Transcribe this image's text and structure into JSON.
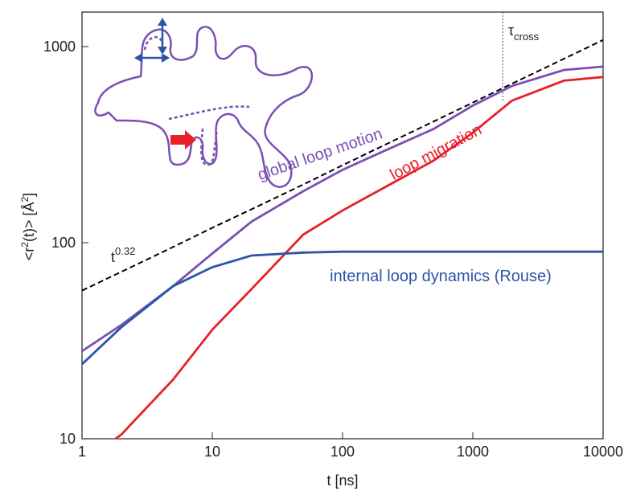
{
  "chart_data": {
    "type": "line",
    "log_x": true,
    "log_y": true,
    "x_label": "t [ns]",
    "y_label": [
      "<r",
      "2",
      "(t)> [Å",
      "2",
      "]"
    ],
    "x": [
      1,
      2,
      5,
      10,
      20,
      50,
      100,
      200,
      500,
      1000,
      2000,
      5000,
      10000
    ],
    "series": [
      {
        "color": "#000000",
        "dash": true,
        "values": [
          57,
          71,
          95,
          119,
          148,
          198,
          248,
          310,
          415,
          518,
          647,
          866,
          1080
        ]
      },
      {
        "name": "global loop motion",
        "color": "#7b4fb5",
        "values": [
          28,
          38,
          60,
          88,
          128,
          183,
          235,
          290,
          380,
          500,
          630,
          760,
          790
        ]
      },
      {
        "name": "loop migration",
        "color": "#e8202a",
        "values": [
          7.5,
          10.5,
          20,
          36,
          58,
          110,
          146,
          188,
          262,
          364,
          530,
          670,
          700
        ]
      },
      {
        "name": "internal loop dynamics (Rouse)",
        "color": "#2c55a6",
        "values": [
          24,
          37,
          60,
          75,
          86,
          89,
          90,
          90,
          90,
          90,
          90,
          90,
          90
        ]
      }
    ],
    "xlim": [
      1,
      10000
    ],
    "ylim": [
      10,
      1500
    ],
    "xticks": [
      1,
      10,
      100,
      1000,
      10000
    ],
    "yticks": [
      10,
      100,
      1000
    ],
    "annotations": [
      {
        "text": "t",
        "sup": "0.32"
      },
      {
        "text": "τ",
        "sub": "cross",
        "x": 1700
      }
    ]
  }
}
